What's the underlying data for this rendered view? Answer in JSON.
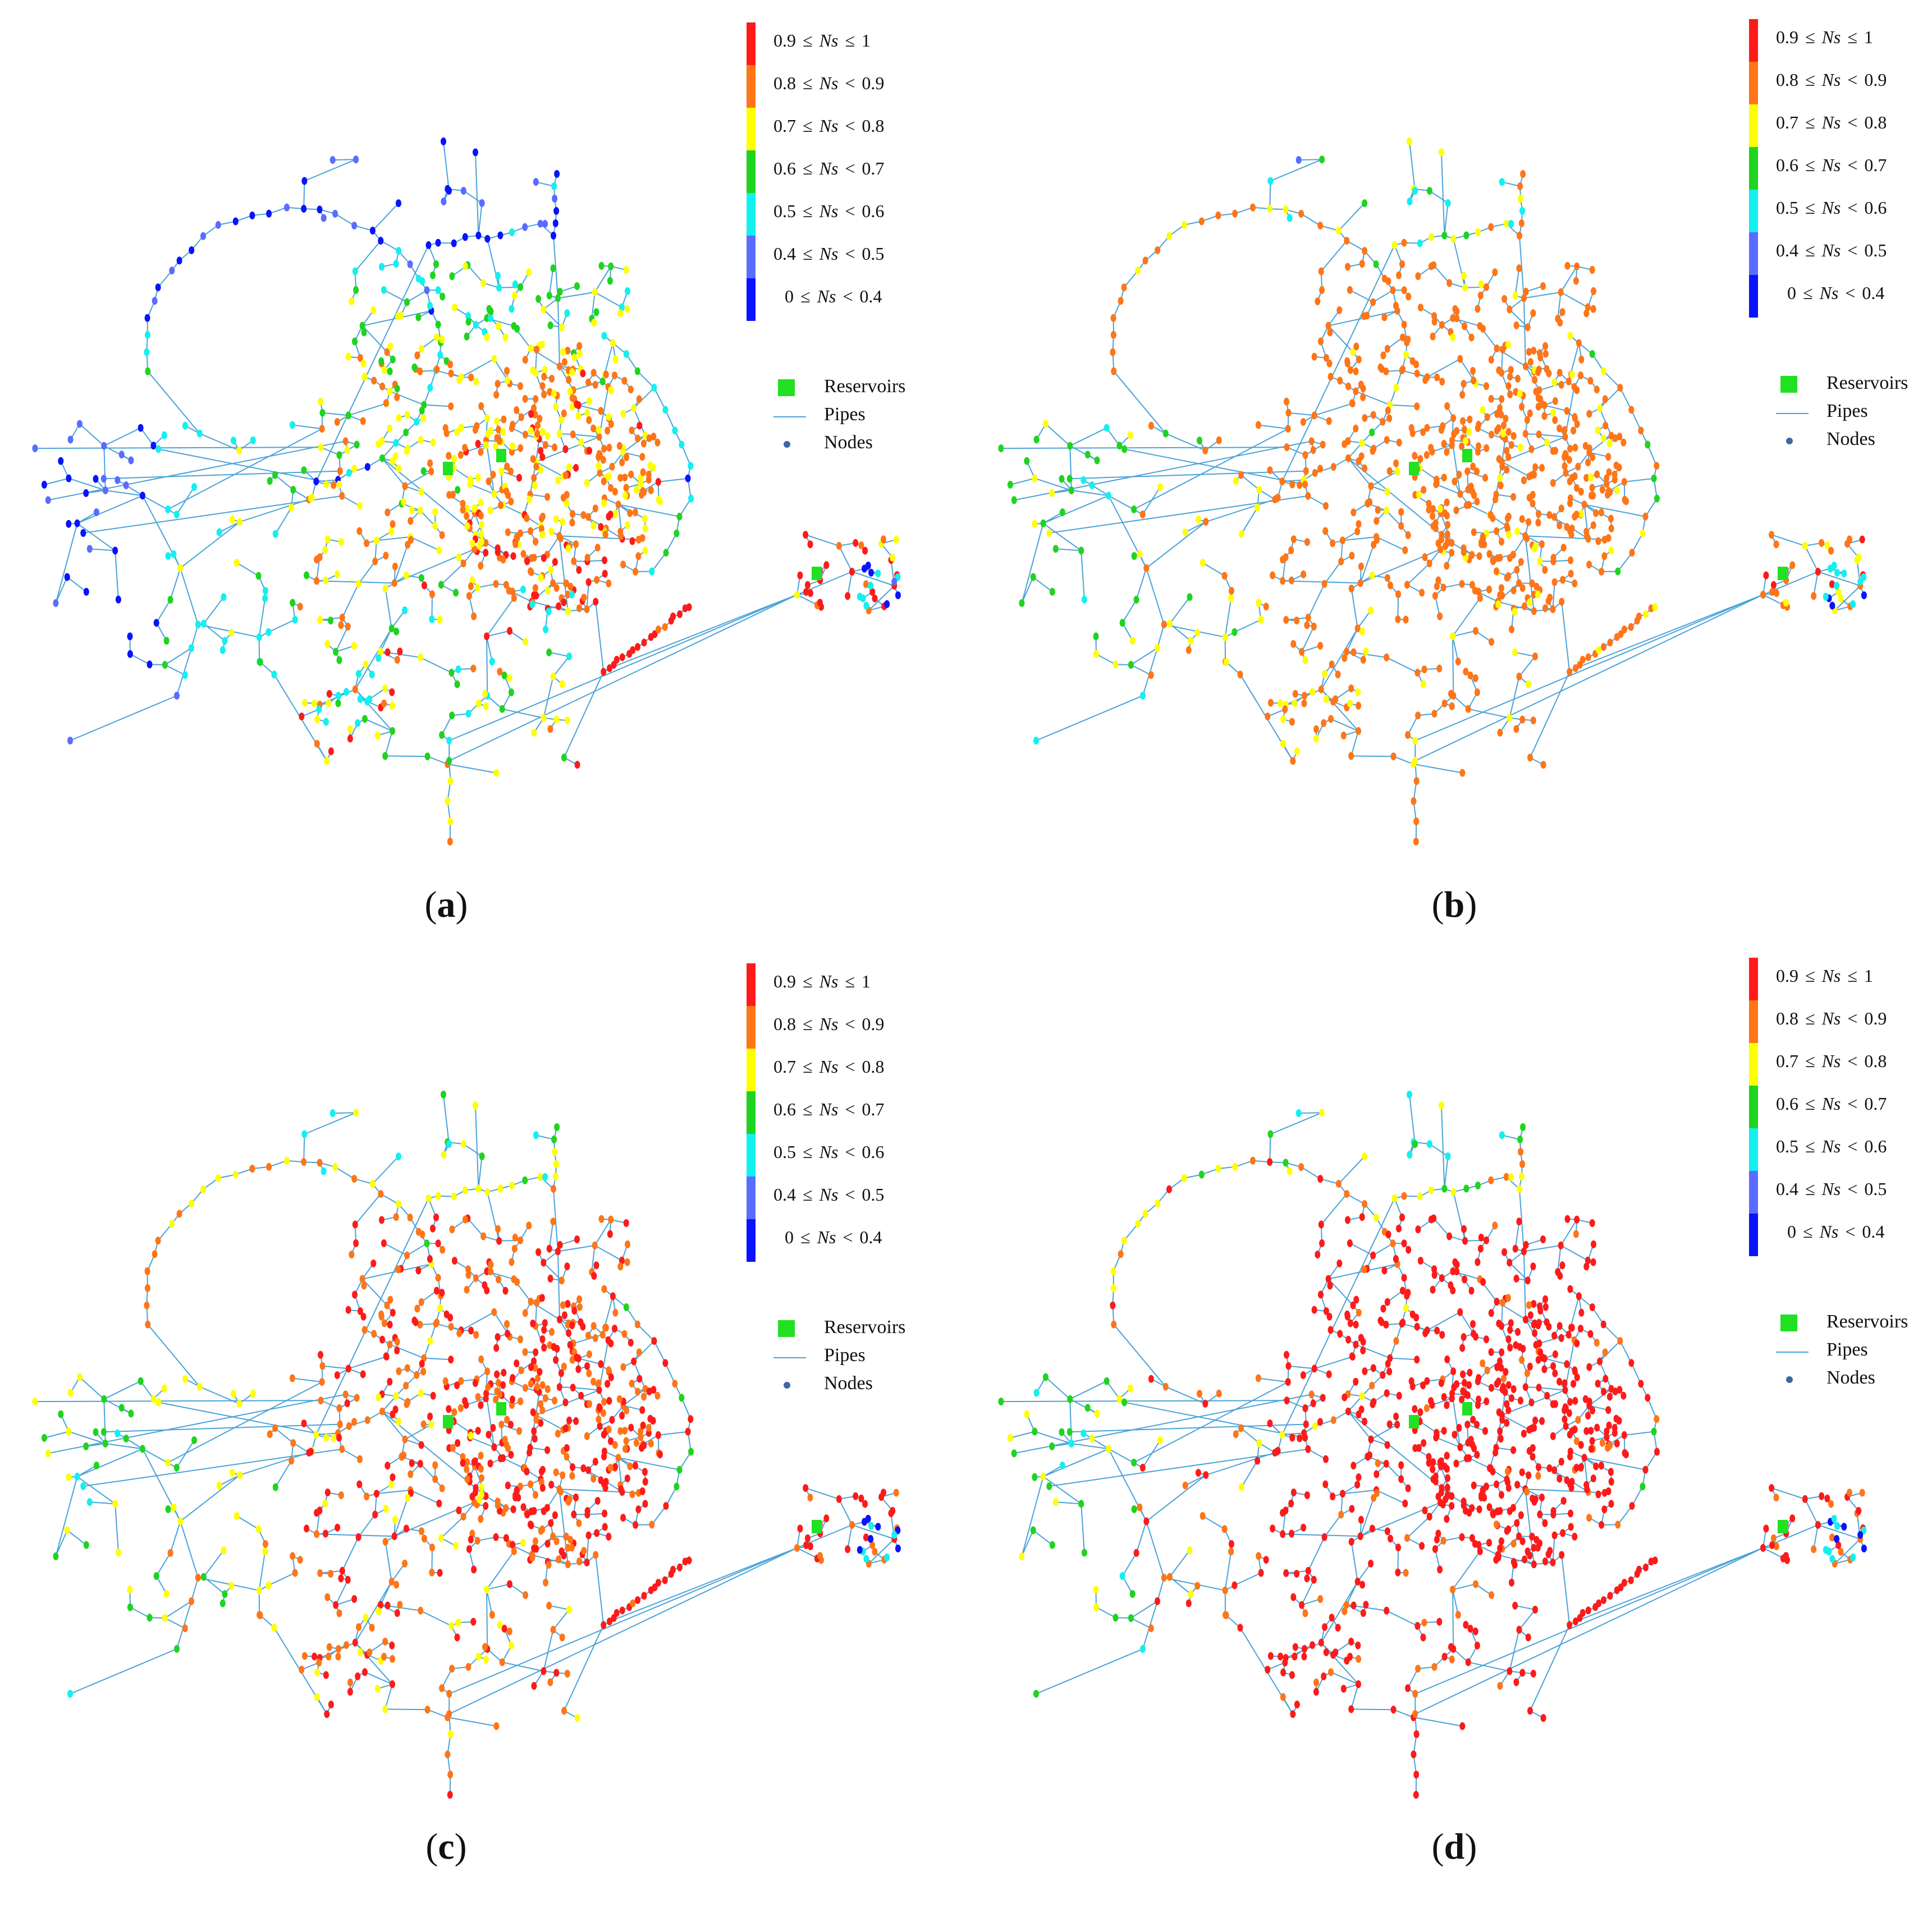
{
  "figure": {
    "legend": {
      "scale": [
        {
          "lo": "0.9",
          "op1": "≤",
          "var": "Ns",
          "op2": "≤",
          "hi": "1",
          "color": "#ff1a1a"
        },
        {
          "lo": "0.8",
          "op1": "≤",
          "var": "Ns",
          "op2": "<",
          "hi": "0.9",
          "color": "#ff7518"
        },
        {
          "lo": "0.7",
          "op1": "≤",
          "var": "Ns",
          "op2": "<",
          "hi": "0.8",
          "color": "#ffff00"
        },
        {
          "lo": "0.6",
          "op1": "≤",
          "var": "Ns",
          "op2": "<",
          "hi": "0.7",
          "color": "#1fd41f"
        },
        {
          "lo": "0.5",
          "op1": "≤",
          "var": "Ns",
          "op2": "<",
          "hi": "0.6",
          "color": "#12f0f0"
        },
        {
          "lo": "0.4",
          "op1": "≤",
          "var": "Ns",
          "op2": "<",
          "hi": "0.5",
          "color": "#5a6cff"
        },
        {
          "lo": "0",
          "op1": "≤",
          "var": "Ns",
          "op2": "<",
          "hi": "0.4",
          "color": "#0a12ff"
        }
      ],
      "keys": {
        "reservoirs": {
          "label": "Reservoirs",
          "color": "#22e022"
        },
        "pipes": {
          "label": "Pipes",
          "color": "#4aa3d8"
        },
        "nodes": {
          "label": "Nodes",
          "color": "#3b6a9e"
        }
      }
    },
    "panels": [
      {
        "id": "a",
        "caption": "a",
        "scheme": "low"
      },
      {
        "id": "b",
        "caption": "b",
        "scheme": "mid"
      },
      {
        "id": "c",
        "caption": "c",
        "scheme": "high"
      },
      {
        "id": "d",
        "caption": "d",
        "scheme": "max"
      }
    ]
  }
}
